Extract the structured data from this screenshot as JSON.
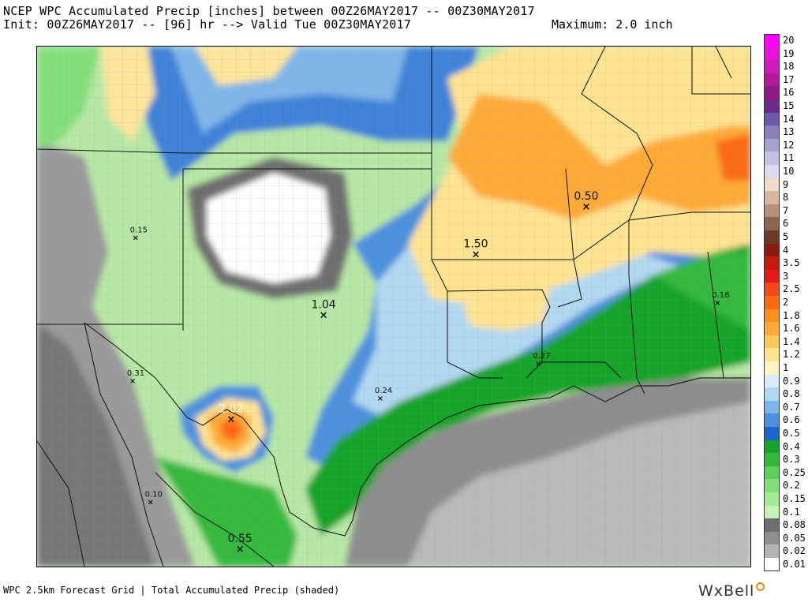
{
  "header": {
    "title": "NCEP WPC Accumulated Precip [inches] between 00Z26MAY2017 -- 00Z30MAY2017",
    "init": "Init: 00Z26MAY2017 -- [96] hr --> Valid Tue 00Z30MAY2017",
    "maximum": "Maximum: 2.0 inch"
  },
  "stations": [
    {
      "label": "0.15",
      "lon": -103.6,
      "lat": 32.9,
      "big": false
    },
    {
      "label": "1.04",
      "lon": -97.3,
      "lat": 31.1,
      "big": true
    },
    {
      "label": "1.50",
      "lon": -92.2,
      "lat": 32.5,
      "big": true
    },
    {
      "label": "0.50",
      "lon": -88.5,
      "lat": 33.6,
      "big": true
    },
    {
      "label": "0.18",
      "lon": -84.1,
      "lat": 31.4,
      "big": false
    },
    {
      "label": "0.31",
      "lon": -103.7,
      "lat": 29.6,
      "big": false
    },
    {
      "label": "2.02",
      "lon": -100.4,
      "lat": 28.7,
      "big": true,
      "light": true
    },
    {
      "label": "0.27",
      "lon": -90.1,
      "lat": 30.0,
      "big": false
    },
    {
      "label": "0.24",
      "lon": -95.4,
      "lat": 29.2,
      "big": false
    },
    {
      "label": "0.10",
      "lon": -103.1,
      "lat": 26.8,
      "big": false
    },
    {
      "label": "0.55",
      "lon": -100.1,
      "lat": 25.7,
      "big": true
    }
  ],
  "legend": [
    {
      "label": "20",
      "color": "#ff00ff"
    },
    {
      "label": "19",
      "color": "#e812d8"
    },
    {
      "label": "18",
      "color": "#cf1bbc"
    },
    {
      "label": "17",
      "color": "#b21a9e"
    },
    {
      "label": "16",
      "color": "#8e1a86"
    },
    {
      "label": "15",
      "color": "#6d2a8e"
    },
    {
      "label": "14",
      "color": "#6b5aa8"
    },
    {
      "label": "13",
      "color": "#8782be"
    },
    {
      "label": "12",
      "color": "#a5a3d2"
    },
    {
      "label": "11",
      "color": "#c4c2e2"
    },
    {
      "label": "10",
      "color": "#dcdaee"
    },
    {
      "label": "9",
      "color": "#f0dccc"
    },
    {
      "label": "8",
      "color": "#d8b7a0"
    },
    {
      "label": "7",
      "color": "#b9907a"
    },
    {
      "label": "6",
      "color": "#8c6452"
    },
    {
      "label": "5",
      "color": "#6b3a2a"
    },
    {
      "label": "4",
      "color": "#8a1b0e"
    },
    {
      "label": "3.5",
      "color": "#c41a10"
    },
    {
      "label": "3",
      "color": "#e31a1c"
    },
    {
      "label": "2.5",
      "color": "#f44a17"
    },
    {
      "label": "2",
      "color": "#fa6a14"
    },
    {
      "label": "1.8",
      "color": "#fb8f1f"
    },
    {
      "label": "1.6",
      "color": "#fdaa38"
    },
    {
      "label": "1.4",
      "color": "#fec95b"
    },
    {
      "label": "1.2",
      "color": "#fee392"
    },
    {
      "label": "1",
      "color": "#fff3c4"
    },
    {
      "label": "0.9",
      "color": "#d7ecf7"
    },
    {
      "label": "0.8",
      "color": "#b2d8f1"
    },
    {
      "label": "0.7",
      "color": "#7fb5e8"
    },
    {
      "label": "0.6",
      "color": "#4d90dc"
    },
    {
      "label": "0.5",
      "color": "#1b66cc"
    },
    {
      "label": "0.4",
      "color": "#14a32b"
    },
    {
      "label": "0.3",
      "color": "#34b83c"
    },
    {
      "label": "0.25",
      "color": "#5ed05a"
    },
    {
      "label": "0.2",
      "color": "#85de7b"
    },
    {
      "label": "0.15",
      "color": "#a8e899"
    },
    {
      "label": "0.1",
      "color": "#c8f2b8"
    },
    {
      "label": "0.08",
      "color": "#6e6e6e"
    },
    {
      "label": "0.05",
      "color": "#8f8f8f"
    },
    {
      "label": "0.02",
      "color": "#b4b4b4"
    },
    {
      "label": "0.01",
      "color": "#ffffff"
    }
  ],
  "footer": "WPC 2.5km Forecast Grid | Total Accumulated Precip (shaded)",
  "brand": "WxBell"
}
